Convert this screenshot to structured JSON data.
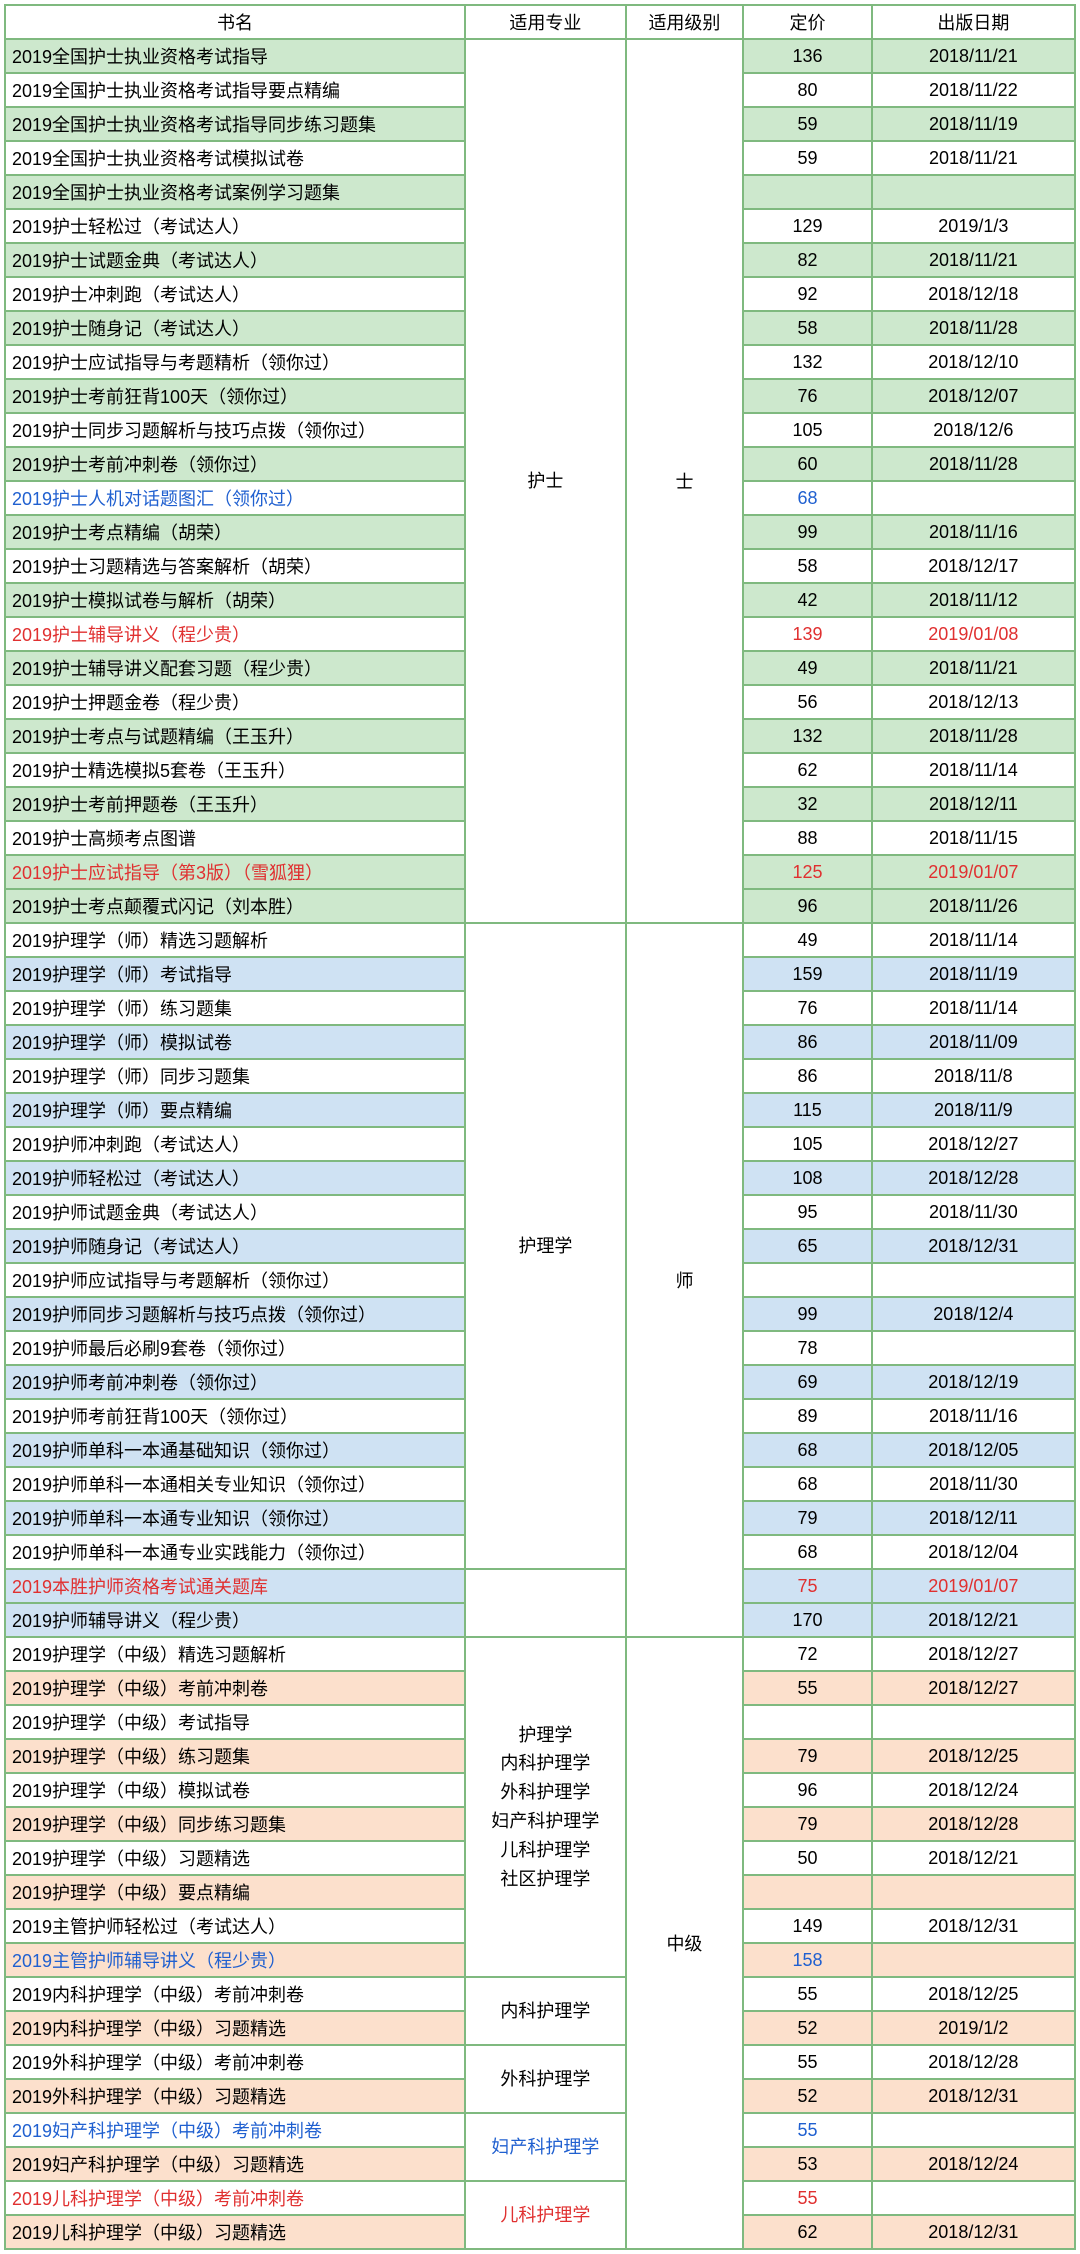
{
  "colors": {
    "border": "#7fb97f",
    "shade_green": "#cde8cd",
    "shade_blue": "#cfe2f3",
    "shade_peach": "#fce0cc",
    "white": "#ffffff",
    "text_black": "#000000",
    "text_red": "#e03030",
    "text_blue": "#2060d0"
  },
  "headers": {
    "name": "书名",
    "major": "适用专业",
    "level": "适用级别",
    "price": "定价",
    "date": "出版日期"
  },
  "sections": [
    {
      "id": "nurse",
      "major_label": "护士",
      "level_label": "士",
      "row_shade_color": "#cde8cd",
      "major_groups": [
        {
          "label": "护士",
          "rowspan": 26
        }
      ],
      "rows": [
        {
          "name": "2019全国护士执业资格考试指导",
          "price": 136,
          "date": "2018/11/21",
          "color": "black",
          "shaded": true
        },
        {
          "name": "2019全国护士执业资格考试指导要点精编",
          "price": 80,
          "date": "2018/11/22",
          "color": "black",
          "shaded": false
        },
        {
          "name": "2019全国护士执业资格考试指导同步练习题集",
          "price": 59,
          "date": "2018/11/19",
          "color": "black",
          "shaded": true
        },
        {
          "name": "2019全国护士执业资格考试模拟试卷",
          "price": 59,
          "date": "2018/11/21",
          "color": "black",
          "shaded": false
        },
        {
          "name": "2019全国护士执业资格考试案例学习题集",
          "price": "",
          "date": "",
          "color": "black",
          "shaded": true
        },
        {
          "name": "2019护士轻松过（考试达人）",
          "price": 129,
          "date": "2019/1/3",
          "color": "black",
          "shaded": false
        },
        {
          "name": "2019护士试题金典（考试达人）",
          "price": 82,
          "date": "2018/11/21",
          "color": "black",
          "shaded": true
        },
        {
          "name": "2019护士冲刺跑（考试达人）",
          "price": 92,
          "date": "2018/12/18",
          "color": "black",
          "shaded": false
        },
        {
          "name": "2019护士随身记（考试达人）",
          "price": 58,
          "date": "2018/11/28",
          "color": "black",
          "shaded": true
        },
        {
          "name": "2019护士应试指导与考题精析（领你过）",
          "price": 132,
          "date": "2018/12/10",
          "color": "black",
          "shaded": false
        },
        {
          "name": "2019护士考前狂背100天（领你过）",
          "price": 76,
          "date": "2018/12/07",
          "color": "black",
          "shaded": true
        },
        {
          "name": "2019护士同步习题解析与技巧点拨（领你过）",
          "price": 105,
          "date": "2018/12/6",
          "color": "black",
          "shaded": false
        },
        {
          "name": "2019护士考前冲刺卷（领你过）",
          "price": 60,
          "date": "2018/11/28",
          "color": "black",
          "shaded": true
        },
        {
          "name": "2019护士人机对话题图汇（领你过）",
          "price": 68,
          "date": "",
          "color": "blue",
          "shaded": false
        },
        {
          "name": "2019护士考点精编（胡荣）",
          "price": 99,
          "date": "2018/11/16",
          "color": "black",
          "shaded": true
        },
        {
          "name": "2019护士习题精选与答案解析（胡荣）",
          "price": 58,
          "date": "2018/12/17",
          "color": "black",
          "shaded": false
        },
        {
          "name": "2019护士模拟试卷与解析（胡荣）",
          "price": 42,
          "date": "2018/11/12",
          "color": "black",
          "shaded": true
        },
        {
          "name": "2019护士辅导讲义（程少贵）",
          "price": 139,
          "date": "2019/01/08",
          "color": "red",
          "shaded": false
        },
        {
          "name": "2019护士辅导讲义配套习题（程少贵）",
          "price": 49,
          "date": "2018/11/21",
          "color": "black",
          "shaded": true
        },
        {
          "name": "2019护士押题金卷（程少贵）",
          "price": 56,
          "date": "2018/12/13",
          "color": "black",
          "shaded": false
        },
        {
          "name": "2019护士考点与试题精编（王玉升）",
          "price": 132,
          "date": "2018/11/28",
          "color": "black",
          "shaded": true
        },
        {
          "name": "2019护士精选模拟5套卷（王玉升）",
          "price": 62,
          "date": "2018/11/14",
          "color": "black",
          "shaded": false
        },
        {
          "name": "2019护士考前押题卷（王玉升）",
          "price": 32,
          "date": "2018/12/11",
          "color": "black",
          "shaded": true
        },
        {
          "name": "2019护士高频考点图谱",
          "price": 88,
          "date": "2018/11/15",
          "color": "black",
          "shaded": false
        },
        {
          "name": "2019护士应试指导（第3版）（雪狐狸）",
          "price": 125,
          "date": "2019/01/07",
          "color": "red",
          "shaded": true
        },
        {
          "name": "2019护士考点颠覆式闪记（刘本胜）",
          "price": 96,
          "date": "2018/11/26",
          "color": "black",
          "shaded": true
        }
      ]
    },
    {
      "id": "shi",
      "major_label": "护理学",
      "level_label": "师",
      "row_shade_color": "#cfe2f3",
      "major_groups": [
        {
          "label": "护理学",
          "rowspan": 19
        }
      ],
      "rows": [
        {
          "name": "2019护理学（师）精选习题解析",
          "price": 49,
          "date": "2018/11/14",
          "color": "black",
          "shaded": false
        },
        {
          "name": "2019护理学（师）考试指导",
          "price": 159,
          "date": "2018/11/19",
          "color": "black",
          "shaded": true
        },
        {
          "name": "2019护理学（师）练习题集",
          "price": 76,
          "date": "2018/11/14",
          "color": "black",
          "shaded": false
        },
        {
          "name": "2019护理学（师）模拟试卷",
          "price": 86,
          "date": "2018/11/09",
          "color": "black",
          "shaded": true
        },
        {
          "name": "2019护理学（师）同步习题集",
          "price": 86,
          "date": "2018/11/8",
          "color": "black",
          "shaded": false
        },
        {
          "name": "2019护理学（师）要点精编",
          "price": 115,
          "date": "2018/11/9",
          "color": "black",
          "shaded": true
        },
        {
          "name": "2019护师冲刺跑（考试达人）",
          "price": 105,
          "date": "2018/12/27",
          "color": "black",
          "shaded": false
        },
        {
          "name": "2019护师轻松过（考试达人）",
          "price": 108,
          "date": "2018/12/28",
          "color": "black",
          "shaded": true
        },
        {
          "name": "2019护师试题金典（考试达人）",
          "price": 95,
          "date": "2018/11/30",
          "color": "black",
          "shaded": false
        },
        {
          "name": "2019护师随身记（考试达人）",
          "price": 65,
          "date": "2018/12/31",
          "color": "black",
          "shaded": true
        },
        {
          "name": "2019护师应试指导与考题解析（领你过）",
          "price": "",
          "date": "",
          "color": "black",
          "shaded": false
        },
        {
          "name": "2019护师同步习题解析与技巧点拨（领你过）",
          "price": 99,
          "date": "2018/12/4",
          "color": "black",
          "shaded": true
        },
        {
          "name": "2019护师最后必刷9套卷（领你过）",
          "price": 78,
          "date": "",
          "color": "black",
          "shaded": false
        },
        {
          "name": "2019护师考前冲刺卷（领你过）",
          "price": 69,
          "date": "2018/12/19",
          "color": "black",
          "shaded": true
        },
        {
          "name": "2019护师考前狂背100天（领你过）",
          "price": 89,
          "date": "2018/11/16",
          "color": "black",
          "shaded": false
        },
        {
          "name": "2019护师单科一本通基础知识（领你过）",
          "price": 68,
          "date": "2018/12/05",
          "color": "black",
          "shaded": true
        },
        {
          "name": "2019护师单科一本通相关专业知识（领你过）",
          "price": 68,
          "date": "2018/11/30",
          "color": "black",
          "shaded": false
        },
        {
          "name": "2019护师单科一本通专业知识（领你过）",
          "price": 79,
          "date": "2018/12/11",
          "color": "black",
          "shaded": true
        },
        {
          "name": "2019护师单科一本通专业实践能力（领你过）",
          "price": 68,
          "date": "2018/12/04",
          "color": "black",
          "shaded": false
        },
        {
          "name": "2019本胜护师资格考试通关题库",
          "price": 75,
          "date": "2019/01/07",
          "color": "red",
          "shaded": true,
          "no_major": true
        },
        {
          "name": "2019护师辅导讲义（程少贵）",
          "price": 170,
          "date": "2018/12/21",
          "color": "black",
          "shaded": true,
          "no_major": true
        }
      ]
    },
    {
      "id": "mid",
      "level_label": "中级",
      "row_shade_color": "#fce0cc",
      "major_groups": [
        {
          "label": "护理学\n内科护理学\n外科护理学\n妇产科护理学\n儿科护理学\n社区护理学",
          "rowspan": 10
        },
        {
          "label": "内科护理学",
          "rowspan": 2
        },
        {
          "label": "外科护理学",
          "rowspan": 2
        },
        {
          "label": "妇产科护理学",
          "rowspan": 2,
          "color": "blue"
        },
        {
          "label": "儿科护理学",
          "rowspan": 2,
          "color": "red"
        }
      ],
      "rows": [
        {
          "name": "2019护理学（中级）精选习题解析",
          "price": 72,
          "date": "2018/12/27",
          "color": "black",
          "shaded": false
        },
        {
          "name": "2019护理学（中级）考前冲刺卷",
          "price": 55,
          "date": "2018/12/27",
          "color": "black",
          "shaded": true
        },
        {
          "name": "2019护理学（中级）考试指导",
          "price": "",
          "date": "",
          "color": "black",
          "shaded": false
        },
        {
          "name": "2019护理学（中级）练习题集",
          "price": 79,
          "date": "2018/12/25",
          "color": "black",
          "shaded": true
        },
        {
          "name": "2019护理学（中级）模拟试卷",
          "price": 96,
          "date": "2018/12/24",
          "color": "black",
          "shaded": false
        },
        {
          "name": "2019护理学（中级）同步练习题集",
          "price": 79,
          "date": "2018/12/28",
          "color": "black",
          "shaded": true
        },
        {
          "name": "2019护理学（中级）习题精选",
          "price": 50,
          "date": "2018/12/21",
          "color": "black",
          "shaded": false
        },
        {
          "name": "2019护理学（中级）要点精编",
          "price": "",
          "date": "",
          "color": "black",
          "shaded": true
        },
        {
          "name": "2019主管护师轻松过（考试达人）",
          "price": 149,
          "date": "2018/12/31",
          "color": "black",
          "shaded": false
        },
        {
          "name": "2019主管护师辅导讲义（程少贵）",
          "price": 158,
          "date": "",
          "color": "blue",
          "shaded": true
        },
        {
          "name": "2019内科护理学（中级）考前冲刺卷",
          "price": 55,
          "date": "2018/12/25",
          "color": "black",
          "shaded": false
        },
        {
          "name": "2019内科护理学（中级）习题精选",
          "price": 52,
          "date": "2019/1/2",
          "color": "black",
          "shaded": true
        },
        {
          "name": "2019外科护理学（中级）考前冲刺卷",
          "price": 55,
          "date": "2018/12/28",
          "color": "black",
          "shaded": false
        },
        {
          "name": "2019外科护理学（中级）习题精选",
          "price": 52,
          "date": "2018/12/31",
          "color": "black",
          "shaded": true
        },
        {
          "name": "2019妇产科护理学（中级）考前冲刺卷",
          "price": 55,
          "date": "",
          "color": "blue",
          "shaded": false
        },
        {
          "name": "2019妇产科护理学（中级）习题精选",
          "price": 53,
          "date": "2018/12/24",
          "color": "black",
          "shaded": true
        },
        {
          "name": "2019儿科护理学（中级）考前冲刺卷",
          "price": 55,
          "date": "",
          "color": "red",
          "shaded": false
        },
        {
          "name": "2019儿科护理学（中级）习题精选",
          "price": 62,
          "date": "2018/12/31",
          "color": "black",
          "shaded": true
        }
      ]
    }
  ]
}
